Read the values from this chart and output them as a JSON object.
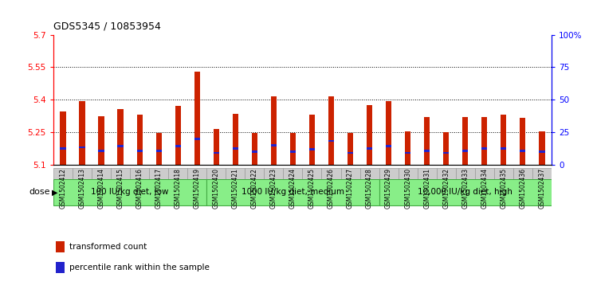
{
  "title": "GDS5345 / 10853954",
  "samples": [
    "GSM1502412",
    "GSM1502413",
    "GSM1502414",
    "GSM1502415",
    "GSM1502416",
    "GSM1502417",
    "GSM1502418",
    "GSM1502419",
    "GSM1502420",
    "GSM1502421",
    "GSM1502422",
    "GSM1502423",
    "GSM1502424",
    "GSM1502425",
    "GSM1502426",
    "GSM1502427",
    "GSM1502428",
    "GSM1502429",
    "GSM1502430",
    "GSM1502431",
    "GSM1502432",
    "GSM1502433",
    "GSM1502434",
    "GSM1502435",
    "GSM1502436",
    "GSM1502437"
  ],
  "bar_tops": [
    5.345,
    5.395,
    5.325,
    5.355,
    5.33,
    5.245,
    5.37,
    5.53,
    5.265,
    5.335,
    5.245,
    5.415,
    5.245,
    5.33,
    5.415,
    5.245,
    5.375,
    5.395,
    5.255,
    5.32,
    5.25,
    5.32,
    5.32,
    5.33,
    5.315,
    5.255
  ],
  "blue_positions": [
    5.175,
    5.18,
    5.165,
    5.185,
    5.165,
    5.165,
    5.185,
    5.22,
    5.155,
    5.175,
    5.16,
    5.19,
    5.16,
    5.17,
    5.21,
    5.155,
    5.175,
    5.185,
    5.155,
    5.165,
    5.155,
    5.165,
    5.175,
    5.175,
    5.165,
    5.16
  ],
  "groups": [
    {
      "label": "100 IU/kg diet, low",
      "start": 0,
      "end": 8
    },
    {
      "label": "1000 IU/kg diet, medium",
      "start": 8,
      "end": 17
    },
    {
      "label": "10,000 IU/kg diet, high",
      "start": 17,
      "end": 26
    }
  ],
  "ymin": 5.1,
  "ymax": 5.7,
  "yticks": [
    5.1,
    5.25,
    5.4,
    5.55,
    5.7
  ],
  "ytick_labels": [
    "5.1",
    "5.25",
    "5.4",
    "5.55",
    "5.7"
  ],
  "y2ticks": [
    0,
    25,
    50,
    75,
    100
  ],
  "y2tick_labels": [
    "0",
    "25",
    "50",
    "75",
    "100%"
  ],
  "grid_lines": [
    5.25,
    5.4,
    5.55
  ],
  "bar_color": "#cc2200",
  "blue_color": "#2222cc",
  "group_color": "#88ee88",
  "group_border": "#44aa44",
  "tick_bg_color": "#cccccc",
  "plot_bg": "#ffffff",
  "dose_label": "dose",
  "legend_items": [
    {
      "color": "#cc2200",
      "label": "transformed count"
    },
    {
      "color": "#2222cc",
      "label": "percentile rank within the sample"
    }
  ]
}
